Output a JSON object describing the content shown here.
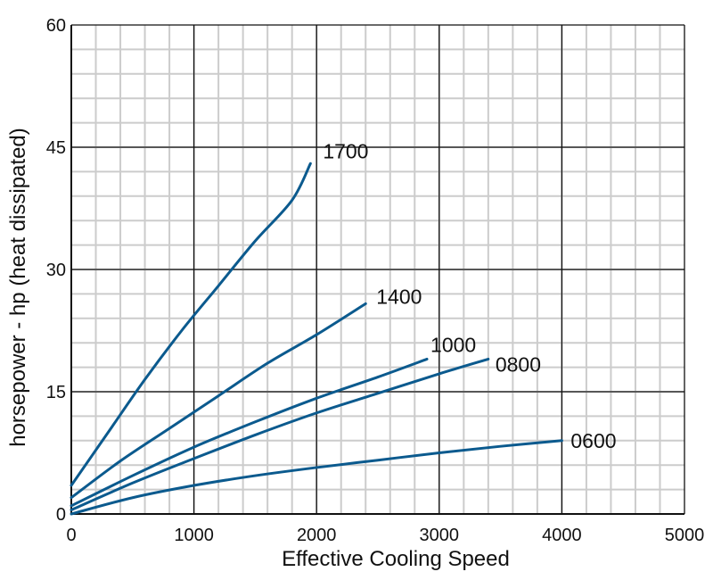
{
  "chart_data": {
    "type": "line",
    "title": "",
    "xlabel": "Effective Cooling Speed",
    "ylabel": "horsepower - hp  (heat dissipated)",
    "xlim": [
      0,
      5000
    ],
    "ylim": [
      0,
      60
    ],
    "xticks": [
      0,
      1000,
      2000,
      3000,
      4000,
      5000
    ],
    "yticks": [
      0,
      15,
      30,
      45,
      60
    ],
    "xtick_labels": [
      "0",
      "1000",
      "2000",
      "3000",
      "4000",
      "5000"
    ],
    "ytick_labels": [
      "0",
      "15",
      "30",
      "45",
      "60"
    ],
    "grid": true,
    "minor_grid": true,
    "line_color": "#0b5a8e",
    "grid_color": "#cccccc",
    "major_grid_color": "#111111",
    "series": [
      {
        "name": "1700",
        "points": [
          [
            0,
            3.5
          ],
          [
            300,
            10
          ],
          [
            600,
            16.5
          ],
          [
            900,
            22.5
          ],
          [
            1200,
            28
          ],
          [
            1500,
            33.5
          ],
          [
            1800,
            38.5
          ],
          [
            1950,
            43
          ]
        ]
      },
      {
        "name": "1400",
        "points": [
          [
            0,
            2
          ],
          [
            400,
            6.5
          ],
          [
            800,
            10.5
          ],
          [
            1200,
            14.5
          ],
          [
            1600,
            18.5
          ],
          [
            2000,
            22
          ],
          [
            2400,
            25.8
          ]
        ]
      },
      {
        "name": "1000",
        "points": [
          [
            0,
            1
          ],
          [
            500,
            4.7
          ],
          [
            1000,
            8.2
          ],
          [
            1500,
            11.3
          ],
          [
            2000,
            14.2
          ],
          [
            2500,
            16.8
          ],
          [
            2900,
            19
          ]
        ]
      },
      {
        "name": "0800",
        "points": [
          [
            0,
            0.5
          ],
          [
            500,
            3.8
          ],
          [
            1000,
            6.8
          ],
          [
            1500,
            9.7
          ],
          [
            2000,
            12.4
          ],
          [
            2500,
            14.8
          ],
          [
            3000,
            17.2
          ],
          [
            3400,
            19
          ]
        ]
      },
      {
        "name": "0600",
        "points": [
          [
            0,
            0
          ],
          [
            500,
            2
          ],
          [
            1000,
            3.5
          ],
          [
            1500,
            4.7
          ],
          [
            2000,
            5.7
          ],
          [
            2500,
            6.6
          ],
          [
            3000,
            7.5
          ],
          [
            3500,
            8.3
          ],
          [
            4000,
            9
          ]
        ]
      }
    ]
  }
}
